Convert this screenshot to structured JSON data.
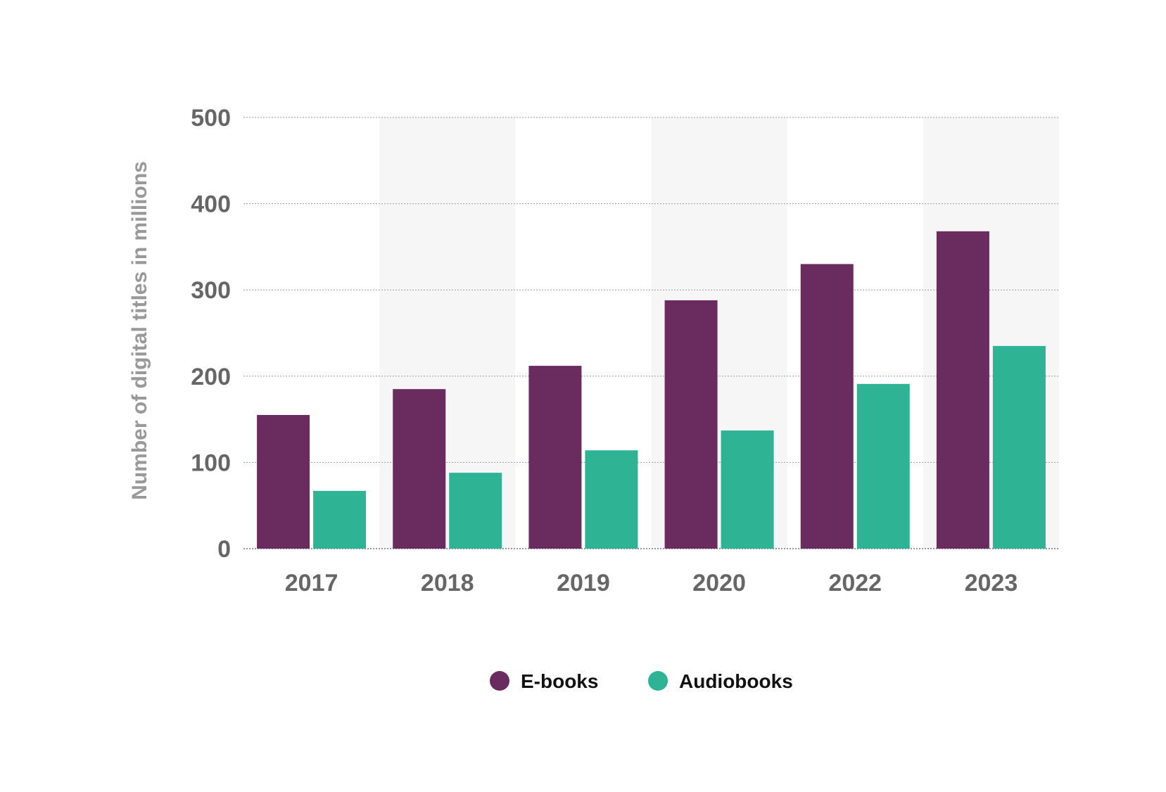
{
  "chart_data": {
    "type": "bar",
    "title": "",
    "xlabel": "",
    "ylabel": "Number of digital titles in millions",
    "categories": [
      "2017",
      "2018",
      "2019",
      "2020",
      "2022",
      "2023"
    ],
    "series": [
      {
        "name": "E-books",
        "color": "#6A2C5F",
        "values": [
          155,
          185,
          212,
          288,
          330,
          368
        ]
      },
      {
        "name": "Audiobooks",
        "color": "#2EB394",
        "values": [
          67,
          88,
          114,
          137,
          191,
          235
        ]
      }
    ],
    "ylim": [
      0,
      500
    ],
    "yticks": [
      "0",
      "100",
      "200",
      "300",
      "400",
      "500"
    ],
    "grid": true,
    "legend_position": "bottom-center"
  }
}
